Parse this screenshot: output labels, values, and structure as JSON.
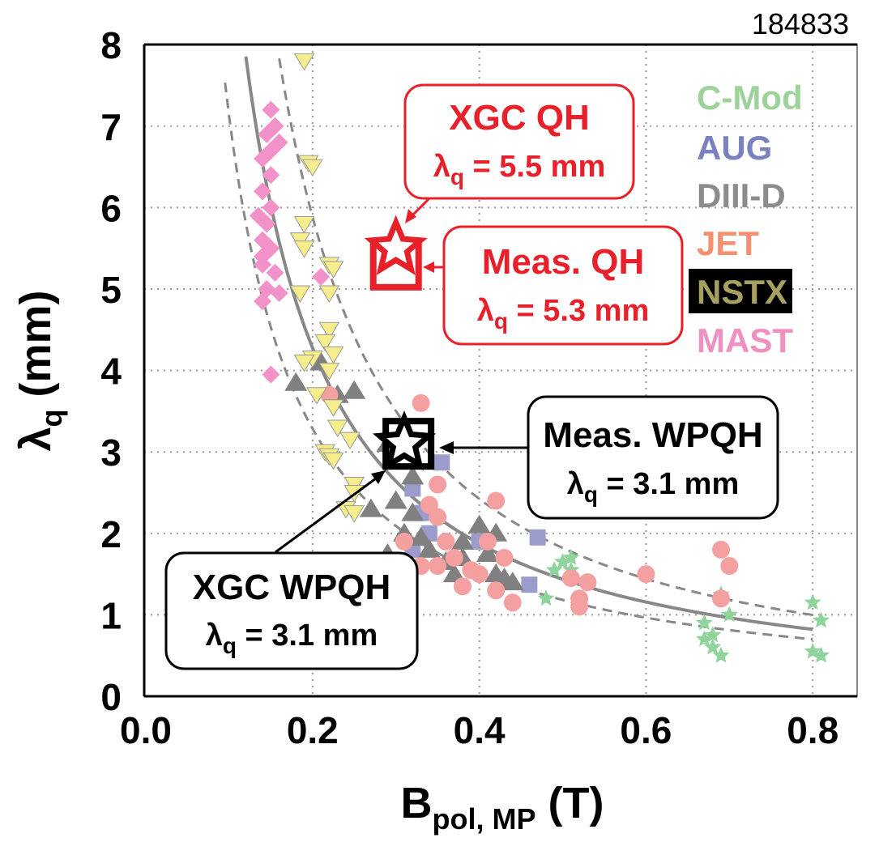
{
  "chart_data": {
    "type": "scatter",
    "shot_label": "184833",
    "xlabel": {
      "main": "B",
      "sub": "pol, MP",
      "unit": " (T)"
    },
    "ylabel": {
      "main": "λ",
      "sub": "q",
      "unit": " (mm)"
    },
    "xlim": [
      0,
      0.85
    ],
    "ylim": [
      0,
      8
    ],
    "xticks": [
      "0.0",
      "0.2",
      "0.4",
      "0.6",
      "0.8"
    ],
    "xtick_values": [
      0,
      0.2,
      0.4,
      0.6,
      0.8
    ],
    "yticks": [
      "0",
      "1",
      "2",
      "3",
      "4",
      "5",
      "6",
      "7",
      "8"
    ],
    "ytick_values": [
      0,
      1,
      2,
      3,
      4,
      5,
      6,
      7,
      8
    ],
    "grid": true,
    "fit": {
      "main": {
        "c": 0.63,
        "a": 1.19
      },
      "upper": {
        "c": 0.75,
        "a": 1.28
      },
      "lower": {
        "c": 0.546,
        "a": 1.115
      }
    },
    "legend_position": "top-right",
    "series": [
      {
        "name": "C-Mod",
        "marker": "star",
        "color": "#8fd49a",
        "points": [
          [
            0.49,
            1.55
          ],
          [
            0.5,
            1.65
          ],
          [
            0.51,
            1.7
          ],
          [
            0.48,
            1.2
          ],
          [
            0.51,
            1.55
          ],
          [
            0.67,
            0.9
          ],
          [
            0.68,
            0.75
          ],
          [
            0.69,
            1.25
          ],
          [
            0.7,
            1.0
          ],
          [
            0.68,
            0.6
          ],
          [
            0.69,
            0.5
          ],
          [
            0.67,
            0.7
          ],
          [
            0.8,
            1.15
          ],
          [
            0.81,
            0.93
          ],
          [
            0.8,
            0.55
          ],
          [
            0.81,
            0.5
          ]
        ]
      },
      {
        "name": "AUG",
        "marker": "square",
        "color": "#9c9ccc",
        "points": [
          [
            0.355,
            2.87
          ],
          [
            0.32,
            2.55
          ],
          [
            0.33,
            2.25
          ],
          [
            0.34,
            2.0
          ],
          [
            0.4,
            1.9
          ],
          [
            0.47,
            1.95
          ],
          [
            0.46,
            1.37
          ],
          [
            0.32,
            1.8
          ]
        ]
      },
      {
        "name": "DIII-D",
        "marker": "triangle-up",
        "color": "#808080",
        "points": [
          [
            0.18,
            3.85
          ],
          [
            0.21,
            4.1
          ],
          [
            0.25,
            3.75
          ],
          [
            0.23,
            3.7
          ],
          [
            0.27,
            2.3
          ],
          [
            0.3,
            2.4
          ],
          [
            0.32,
            2.7
          ],
          [
            0.29,
            3.1
          ],
          [
            0.32,
            2.25
          ],
          [
            0.31,
            2.0
          ],
          [
            0.33,
            1.95
          ],
          [
            0.34,
            1.8
          ],
          [
            0.38,
            1.9
          ],
          [
            0.38,
            1.7
          ],
          [
            0.4,
            2.1
          ],
          [
            0.42,
            2.0
          ],
          [
            0.41,
            1.75
          ],
          [
            0.36,
            1.65
          ],
          [
            0.42,
            1.5
          ],
          [
            0.43,
            1.45
          ],
          [
            0.44,
            1.4
          ],
          [
            0.37,
            1.5
          ],
          [
            0.29,
            1.75
          ]
        ]
      },
      {
        "name": "JET",
        "marker": "circle",
        "color": "#f4a0a0",
        "points": [
          [
            0.33,
            3.6
          ],
          [
            0.35,
            2.6
          ],
          [
            0.34,
            2.35
          ],
          [
            0.35,
            2.2
          ],
          [
            0.36,
            1.9
          ],
          [
            0.37,
            1.7
          ],
          [
            0.35,
            1.6
          ],
          [
            0.39,
            1.55
          ],
          [
            0.4,
            1.5
          ],
          [
            0.42,
            2.4
          ],
          [
            0.41,
            1.9
          ],
          [
            0.43,
            1.7
          ],
          [
            0.42,
            1.3
          ],
          [
            0.44,
            1.15
          ],
          [
            0.51,
            1.45
          ],
          [
            0.52,
            1.2
          ],
          [
            0.53,
            1.4
          ],
          [
            0.6,
            1.5
          ],
          [
            0.52,
            1.1
          ],
          [
            0.69,
            1.8
          ],
          [
            0.7,
            1.6
          ],
          [
            0.69,
            1.2
          ],
          [
            0.22,
            3.7
          ],
          [
            0.33,
            1.6
          ],
          [
            0.31,
            1.9
          ],
          [
            0.38,
            1.35
          ]
        ]
      },
      {
        "name": "NSTX",
        "marker": "triangle-down",
        "color": "#f6ee8c",
        "points": [
          [
            0.19,
            7.8
          ],
          [
            0.195,
            6.55
          ],
          [
            0.2,
            6.5
          ],
          [
            0.19,
            5.8
          ],
          [
            0.185,
            5.6
          ],
          [
            0.19,
            5.5
          ],
          [
            0.22,
            5.3
          ],
          [
            0.225,
            5.25
          ],
          [
            0.185,
            4.95
          ],
          [
            0.22,
            4.95
          ],
          [
            0.22,
            4.5
          ],
          [
            0.215,
            4.35
          ],
          [
            0.225,
            4.2
          ],
          [
            0.2,
            4.15
          ],
          [
            0.22,
            4.0
          ],
          [
            0.19,
            4.1
          ],
          [
            0.205,
            3.7
          ],
          [
            0.225,
            3.55
          ],
          [
            0.23,
            3.3
          ],
          [
            0.245,
            3.15
          ],
          [
            0.215,
            3.0
          ],
          [
            0.22,
            2.95
          ],
          [
            0.225,
            2.9
          ],
          [
            0.25,
            2.6
          ],
          [
            0.25,
            2.5
          ],
          [
            0.24,
            2.3
          ],
          [
            0.25,
            2.25
          ]
        ]
      },
      {
        "name": "MAST",
        "marker": "diamond",
        "color": "#f292c8",
        "points": [
          [
            0.15,
            7.2
          ],
          [
            0.155,
            7.0
          ],
          [
            0.145,
            6.9
          ],
          [
            0.16,
            6.8
          ],
          [
            0.14,
            6.6
          ],
          [
            0.15,
            6.4
          ],
          [
            0.14,
            6.2
          ],
          [
            0.15,
            6.0
          ],
          [
            0.135,
            5.9
          ],
          [
            0.145,
            5.8
          ],
          [
            0.14,
            5.6
          ],
          [
            0.15,
            5.5
          ],
          [
            0.14,
            5.3
          ],
          [
            0.155,
            5.2
          ],
          [
            0.145,
            5.0
          ],
          [
            0.16,
            4.95
          ],
          [
            0.14,
            4.85
          ],
          [
            0.15,
            3.95
          ],
          [
            0.21,
            5.15
          ],
          [
            0.15,
            6.7
          ],
          [
            0.14,
            5.4
          ]
        ]
      }
    ],
    "legend": [
      "C-Mod",
      "AUG",
      "DIII-D",
      "JET",
      "NSTX",
      "MAST"
    ],
    "highlights": [
      {
        "name": "XGC QH",
        "marker": "star",
        "color": "#e8202a",
        "x": 0.3,
        "y": 5.5
      },
      {
        "name": "Meas. QH",
        "marker": "square",
        "color": "#e8202a",
        "x": 0.3,
        "y": 5.3
      },
      {
        "name": "XGC WPQH",
        "marker": "star",
        "color": "#000000",
        "x": 0.31,
        "y": 3.1
      },
      {
        "name": "Meas. WPQH",
        "marker": "square",
        "color": "#000000",
        "x": 0.315,
        "y": 3.1
      }
    ],
    "annotations": [
      {
        "title": "XGC QH",
        "lam": "λ",
        "sub": "q",
        "value": " = 5.5 mm",
        "color": "#e8202a"
      },
      {
        "title": "Meas. QH",
        "lam": "λ",
        "sub": "q",
        "value": " = 5.3 mm",
        "color": "#e8202a"
      },
      {
        "title": "Meas. WPQH",
        "lam": "λ",
        "sub": "q",
        "value": " = 3.1 mm",
        "color": "#000000"
      },
      {
        "title": "XGC WPQH",
        "lam": "λ",
        "sub": "q",
        "value": " = 3.1 mm",
        "color": "#000000"
      }
    ]
  }
}
